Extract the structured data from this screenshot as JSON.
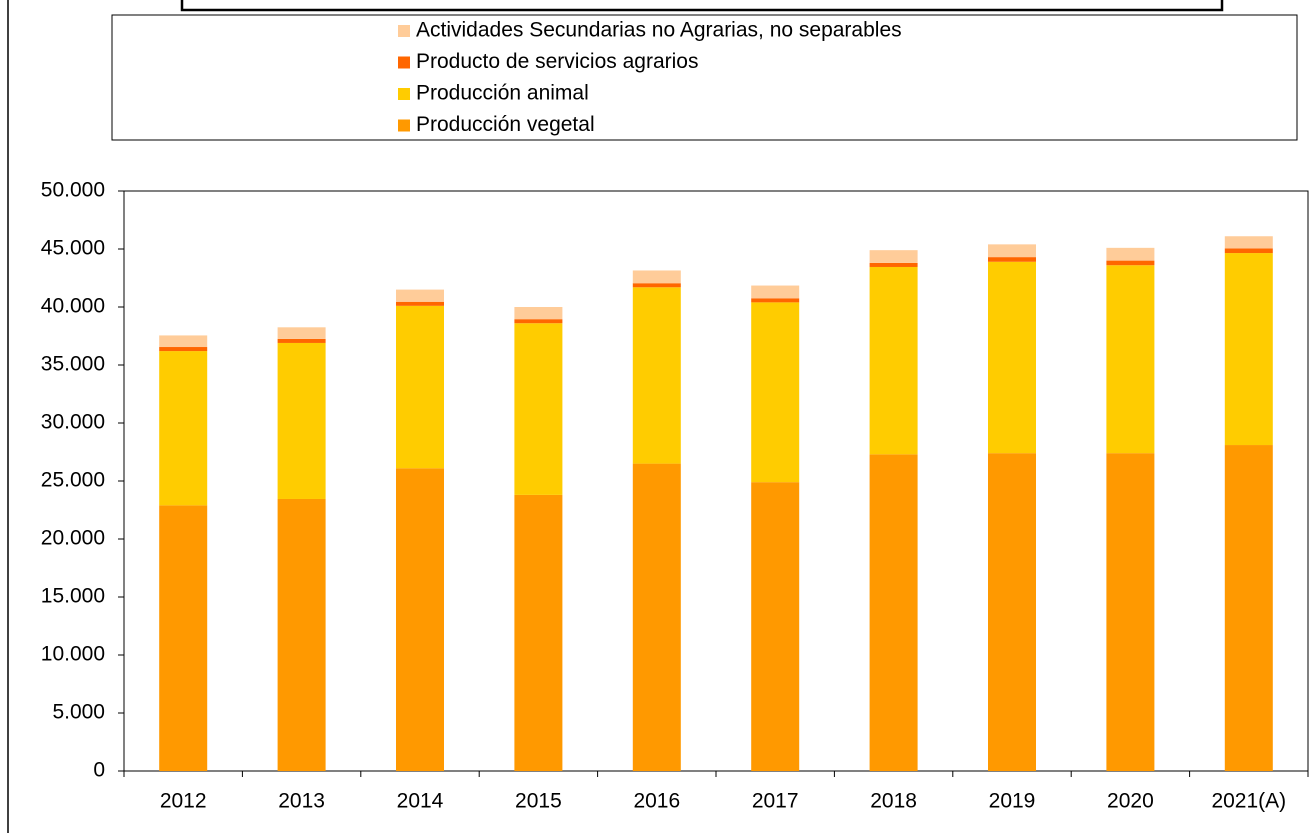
{
  "chart_data": {
    "type": "stacked_bar",
    "categories": [
      "2012",
      "2013",
      "2014",
      "2015",
      "2016",
      "2017",
      "2018",
      "2019",
      "2020",
      "2021(A)"
    ],
    "series": [
      {
        "name": "Producción vegetal",
        "color": "#ff9900",
        "values": [
          22900,
          23450,
          26100,
          23800,
          26500,
          24900,
          27300,
          27400,
          27400,
          28100
        ]
      },
      {
        "name": "Producción animal",
        "color": "#ffcc00",
        "values": [
          13300,
          13450,
          14000,
          14800,
          15200,
          15500,
          16150,
          16500,
          16200,
          16550
        ]
      },
      {
        "name": "Producto de servicios agrarios",
        "color": "#ff6600",
        "values": [
          350,
          350,
          350,
          350,
          350,
          350,
          350,
          400,
          400,
          400
        ]
      },
      {
        "name": "Actividades Secundarias no Agrarias, no separables",
        "color": "#ffcc99",
        "values": [
          1000,
          1000,
          1050,
          1050,
          1100,
          1100,
          1100,
          1100,
          1100,
          1050
        ]
      }
    ],
    "ylim": [
      0,
      50000
    ],
    "yticks": [
      0,
      {
        "value": 5000,
        "label": "5.000"
      },
      {
        "value": 10000,
        "label": "10.000"
      },
      {
        "value": 15000,
        "label": "15.000"
      },
      {
        "value": 20000,
        "label": "20.000"
      },
      {
        "value": 25000,
        "label": "25.000"
      },
      {
        "value": 30000,
        "label": "30.000"
      },
      {
        "value": 35000,
        "label": "35.000"
      },
      {
        "value": 40000,
        "label": "40.000"
      },
      {
        "value": 45000,
        "label": "45.000"
      },
      {
        "value": 50000,
        "label": "50.000"
      }
    ],
    "grid": false,
    "legend": "top"
  }
}
